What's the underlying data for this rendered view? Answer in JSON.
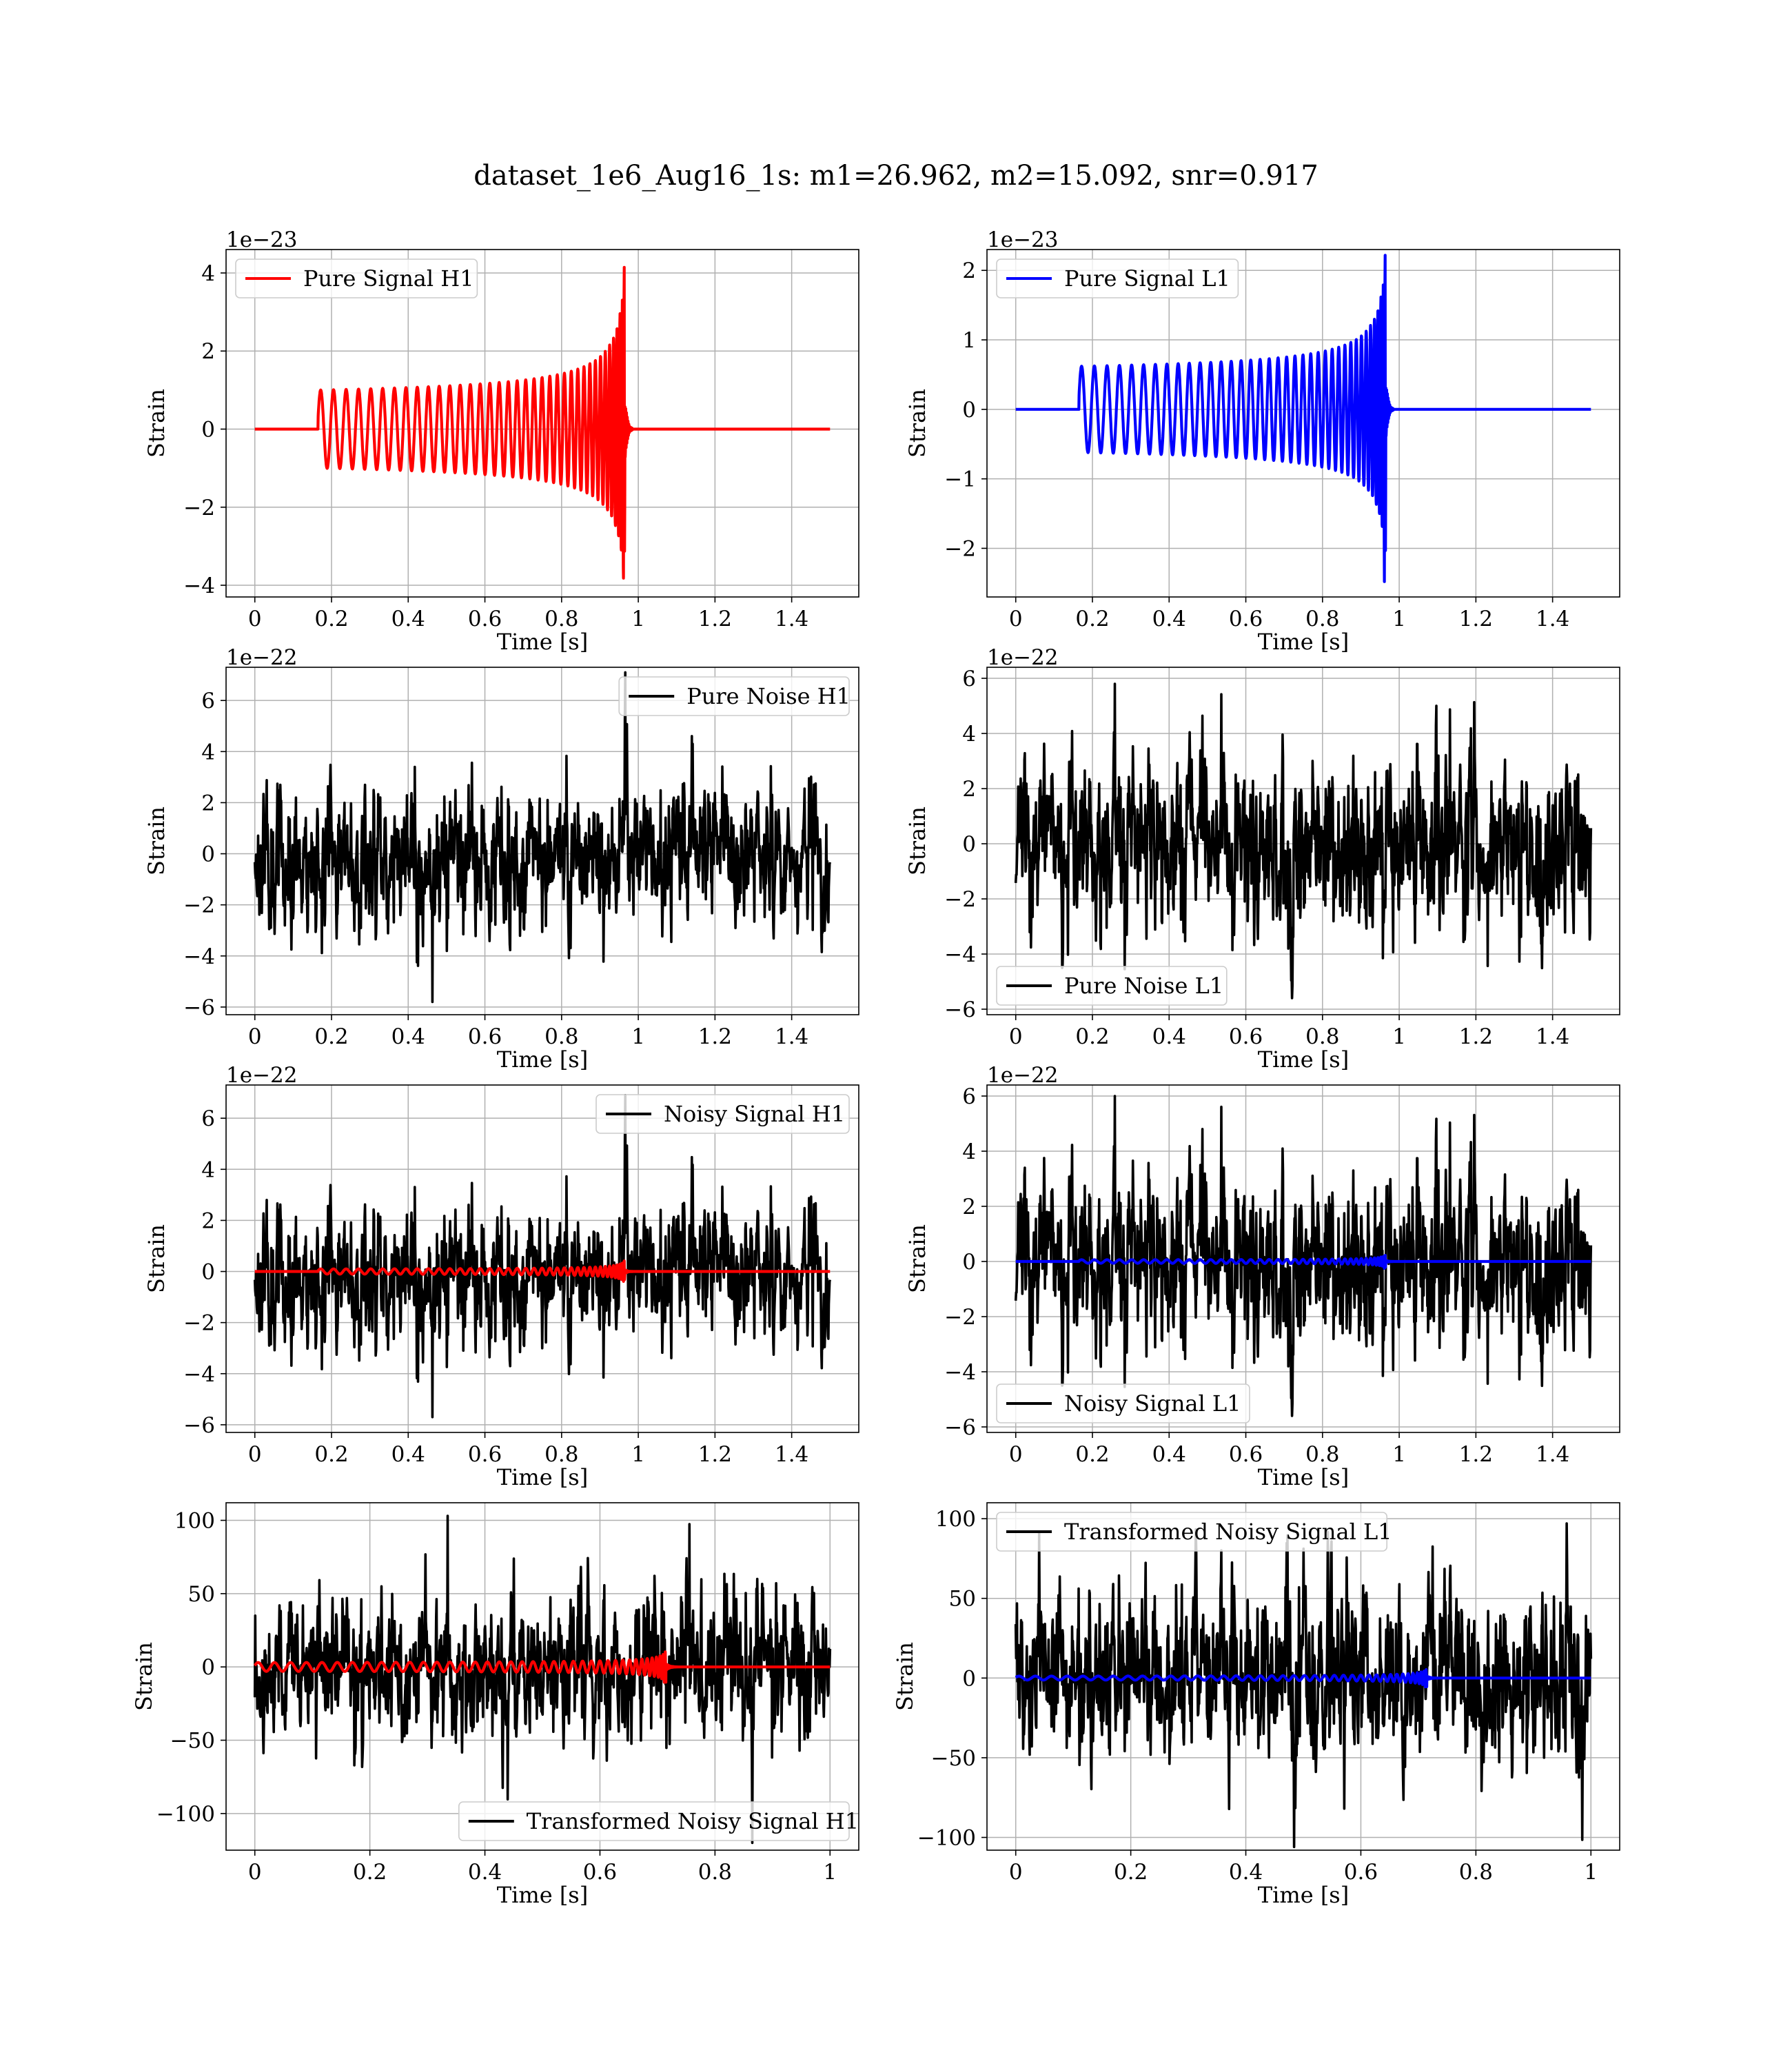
{
  "title": "dataset_1e6_Aug16_1s: m1=26.962, m2=15.092, snr=0.917",
  "colors": {
    "h1_signal": "#ff0000",
    "l1_signal": "#0000ff",
    "noise": "#000000"
  },
  "chart_data": [
    {
      "type": "line",
      "detector": "H1",
      "xlabel": "Time [s]",
      "ylabel": "Strain",
      "offset_text": "1e−23",
      "xlim": [
        -0.075,
        1.575
      ],
      "ylim": [
        -4.3,
        4.6
      ],
      "xticks": [
        0.0,
        0.2,
        0.4,
        0.6,
        0.8,
        1.0,
        1.2,
        1.4
      ],
      "yticks": [
        -4,
        -2,
        0,
        2,
        4
      ],
      "legend_position": "upper left",
      "series": [
        {
          "name": "Pure Signal H1",
          "color": "#ff0000",
          "kind": "chirp",
          "t_start": 0.0,
          "t_end": 1.5,
          "onset": 0.165,
          "merger": 0.965,
          "base_amplitude": 1.0,
          "peak_amplitude": 4.3,
          "neg_peak": -3.85,
          "cycles": 38,
          "f0": 24,
          "f_end": 190
        }
      ]
    },
    {
      "type": "line",
      "detector": "L1",
      "xlabel": "Time [s]",
      "ylabel": "Strain",
      "offset_text": "1e−23",
      "xlim": [
        -0.075,
        1.575
      ],
      "ylim": [
        -2.7,
        2.3
      ],
      "xticks": [
        0.0,
        0.2,
        0.4,
        0.6,
        0.8,
        1.0,
        1.2,
        1.4
      ],
      "yticks": [
        -2,
        -1,
        0,
        1,
        2
      ],
      "legend_position": "upper left",
      "series": [
        {
          "name": "Pure Signal L1",
          "color": "#0000ff",
          "kind": "chirp",
          "t_start": 0.0,
          "t_end": 1.5,
          "onset": 0.165,
          "merger": 0.965,
          "base_amplitude": 0.62,
          "peak_amplitude": 2.3,
          "neg_peak": -2.5,
          "cycles": 38,
          "f0": 24,
          "f_end": 190
        }
      ]
    },
    {
      "type": "line",
      "detector": "H1",
      "xlabel": "Time [s]",
      "ylabel": "Strain",
      "offset_text": "1e−22",
      "xlim": [
        -0.075,
        1.575
      ],
      "ylim": [
        -6.3,
        7.3
      ],
      "xticks": [
        0.0,
        0.2,
        0.4,
        0.6,
        0.8,
        1.0,
        1.2,
        1.4
      ],
      "yticks": [
        -6,
        -4,
        -2,
        0,
        2,
        4,
        6
      ],
      "legend_position": "upper right",
      "series": [
        {
          "name": "Pure Noise H1",
          "color": "#000000",
          "kind": "noise",
          "t_start": 0.0,
          "t_end": 1.5,
          "seed": 11,
          "sigma": 1.55,
          "max": 7.1,
          "min": -5.8
        }
      ]
    },
    {
      "type": "line",
      "detector": "L1",
      "xlabel": "Time [s]",
      "ylabel": "Strain",
      "offset_text": "1e−22",
      "xlim": [
        -0.075,
        1.575
      ],
      "ylim": [
        -6.2,
        6.4
      ],
      "xticks": [
        0.0,
        0.2,
        0.4,
        0.6,
        0.8,
        1.0,
        1.2,
        1.4
      ],
      "yticks": [
        -6,
        -4,
        -2,
        0,
        2,
        4,
        6
      ],
      "legend_position": "lower left",
      "series": [
        {
          "name": "Pure Noise L1",
          "color": "#000000",
          "kind": "noise",
          "t_start": 0.0,
          "t_end": 1.5,
          "seed": 23,
          "sigma": 1.55,
          "max": 5.8,
          "min": -5.6
        }
      ]
    },
    {
      "type": "line",
      "detector": "H1",
      "xlabel": "Time [s]",
      "ylabel": "Strain",
      "offset_text": "1e−22",
      "xlim": [
        -0.075,
        1.575
      ],
      "ylim": [
        -6.3,
        7.3
      ],
      "xticks": [
        0.0,
        0.2,
        0.4,
        0.6,
        0.8,
        1.0,
        1.2,
        1.4
      ],
      "yticks": [
        -6,
        -4,
        -2,
        0,
        2,
        4,
        6
      ],
      "legend_position": "upper right",
      "series": [
        {
          "name": "Noisy Signal H1",
          "color": "#000000",
          "kind": "noise",
          "t_start": 0.0,
          "t_end": 1.5,
          "seed": 11,
          "sigma": 1.55,
          "max": 6.9,
          "min": -5.7
        },
        {
          "name": "",
          "color": "#ff0000",
          "kind": "chirp",
          "t_start": 0.0,
          "t_end": 1.5,
          "onset": 0.165,
          "merger": 0.965,
          "base_amplitude": 0.1,
          "peak_amplitude": 0.43,
          "neg_peak": -0.39,
          "cycles": 38,
          "f0": 24,
          "f_end": 190
        }
      ]
    },
    {
      "type": "line",
      "detector": "L1",
      "xlabel": "Time [s]",
      "ylabel": "Strain",
      "offset_text": "1e−22",
      "xlim": [
        -0.075,
        1.575
      ],
      "ylim": [
        -6.2,
        6.4
      ],
      "xticks": [
        0.0,
        0.2,
        0.4,
        0.6,
        0.8,
        1.0,
        1.2,
        1.4
      ],
      "yticks": [
        -6,
        -4,
        -2,
        0,
        2,
        4,
        6
      ],
      "legend_position": "lower left",
      "series": [
        {
          "name": "Noisy Signal L1",
          "color": "#000000",
          "kind": "noise",
          "t_start": 0.0,
          "t_end": 1.5,
          "seed": 23,
          "sigma": 1.55,
          "max": 6.0,
          "min": -5.6
        },
        {
          "name": "",
          "color": "#0000ff",
          "kind": "chirp",
          "t_start": 0.0,
          "t_end": 1.5,
          "onset": 0.165,
          "merger": 0.965,
          "base_amplitude": 0.062,
          "peak_amplitude": 0.23,
          "neg_peak": -0.25,
          "cycles": 38,
          "f0": 24,
          "f_end": 190
        }
      ]
    },
    {
      "type": "line",
      "detector": "H1",
      "xlabel": "Time [s]",
      "ylabel": "Strain",
      "offset_text": "",
      "xlim": [
        -0.05,
        1.05
      ],
      "ylim": [
        -125,
        112
      ],
      "xticks": [
        0.0,
        0.2,
        0.4,
        0.6,
        0.8,
        1.0
      ],
      "yticks": [
        -100,
        -50,
        0,
        50,
        100
      ],
      "legend_position": "lower right",
      "series": [
        {
          "name": "Transformed Noisy Signal H1",
          "color": "#000000",
          "kind": "noise",
          "t_start": 0.0,
          "t_end": 1.0,
          "seed": 37,
          "sigma": 28,
          "max": 103,
          "min": -120
        },
        {
          "name": "",
          "color": "#ff0000",
          "kind": "chirp",
          "t_start": 0.0,
          "t_end": 1.0,
          "onset": 0.0,
          "merger": 0.715,
          "base_amplitude": 3.0,
          "peak_amplitude": 10.5,
          "neg_peak": -10.5,
          "cycles": 40,
          "f0": 30,
          "f_end": 200
        }
      ]
    },
    {
      "type": "line",
      "detector": "L1",
      "xlabel": "Time [s]",
      "ylabel": "Strain",
      "offset_text": "",
      "xlim": [
        -0.05,
        1.05
      ],
      "ylim": [
        -108,
        110
      ],
      "xticks": [
        0.0,
        0.2,
        0.4,
        0.6,
        0.8,
        1.0
      ],
      "yticks": [
        -100,
        -50,
        0,
        50,
        100
      ],
      "legend_position": "upper left",
      "series": [
        {
          "name": "Transformed Noisy Signal L1",
          "color": "#000000",
          "kind": "noise",
          "t_start": 0.0,
          "t_end": 1.0,
          "seed": 53,
          "sigma": 26,
          "max": 97,
          "min": -106
        },
        {
          "name": "",
          "color": "#0000ff",
          "kind": "chirp",
          "t_start": 0.0,
          "t_end": 1.0,
          "onset": 0.0,
          "merger": 0.715,
          "base_amplitude": 1.2,
          "peak_amplitude": 5.5,
          "neg_peak": -5.5,
          "cycles": 40,
          "f0": 30,
          "f_end": 200
        }
      ]
    }
  ]
}
